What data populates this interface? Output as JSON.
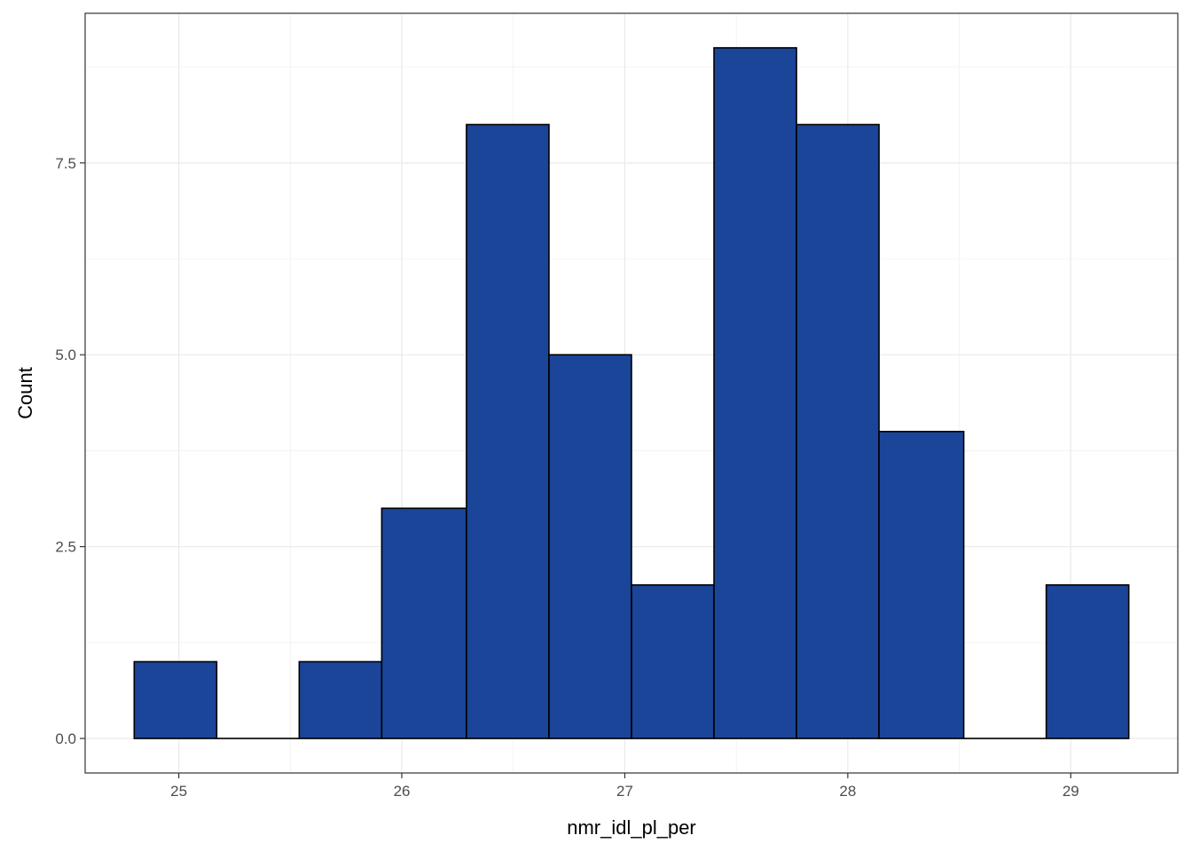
{
  "chart_data": {
    "type": "bar",
    "subtype": "histogram",
    "xlabel": "nmr_idl_pl_per",
    "ylabel": "Count",
    "bins": [
      {
        "x0": 24.8,
        "x1": 25.17,
        "count": 1
      },
      {
        "x0": 25.17,
        "x1": 25.54,
        "count": 0
      },
      {
        "x0": 25.54,
        "x1": 25.91,
        "count": 1
      },
      {
        "x0": 25.91,
        "x1": 26.29,
        "count": 3
      },
      {
        "x0": 26.29,
        "x1": 26.66,
        "count": 8
      },
      {
        "x0": 26.66,
        "x1": 27.03,
        "count": 5
      },
      {
        "x0": 27.03,
        "x1": 27.4,
        "count": 2
      },
      {
        "x0": 27.4,
        "x1": 27.77,
        "count": 9
      },
      {
        "x0": 27.77,
        "x1": 28.14,
        "count": 8
      },
      {
        "x0": 28.14,
        "x1": 28.52,
        "count": 4
      },
      {
        "x0": 28.52,
        "x1": 28.89,
        "count": 0
      },
      {
        "x0": 28.89,
        "x1": 29.26,
        "count": 2
      }
    ],
    "xlim": [
      24.58,
      29.48
    ],
    "ylim": [
      -0.45,
      9.45
    ],
    "x_ticks": [
      25,
      26,
      27,
      28,
      29
    ],
    "x_tick_labels": [
      "25",
      "26",
      "27",
      "28",
      "29"
    ],
    "y_ticks": [
      0,
      2.5,
      5,
      7.5
    ],
    "y_tick_labels": [
      "0.0",
      "2.5",
      "5.0",
      "7.5"
    ],
    "grid": true,
    "legend": "none",
    "fill_color": "#1a4599",
    "edge_color": "#000000"
  }
}
